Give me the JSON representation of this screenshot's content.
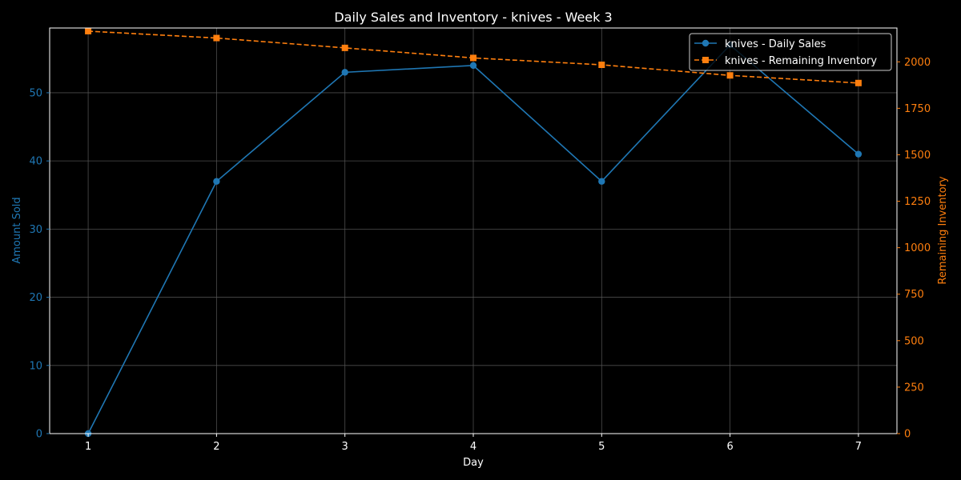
{
  "chart_data": {
    "type": "line",
    "title": "Daily Sales and Inventory - knives - Week 3",
    "xlabel": "Day",
    "ylabel_left": "Amount Sold",
    "ylabel_right": "Remaining Inventory",
    "x": [
      1,
      2,
      3,
      4,
      5,
      6,
      7
    ],
    "xlim": [
      0.7,
      7.3
    ],
    "ylim_left": [
      0,
      59.5
    ],
    "ylim_right": [
      0,
      2182
    ],
    "xticks": [
      1,
      2,
      3,
      4,
      5,
      6,
      7
    ],
    "yticks_left": [
      0,
      10,
      20,
      30,
      40,
      50
    ],
    "yticks_right": [
      0,
      250,
      500,
      750,
      1000,
      1250,
      1500,
      1750,
      2000
    ],
    "grid": true,
    "legend_position": "top-right",
    "series": [
      {
        "name": "knives - Daily Sales",
        "axis": "left",
        "values": [
          0,
          37,
          53,
          54,
          37,
          57,
          41
        ],
        "color": "#1f77b4",
        "marker": "circle",
        "linestyle": "solid"
      },
      {
        "name": "knives - Remaining Inventory",
        "axis": "right",
        "values": [
          2165,
          2128,
          2075,
          2021,
          1984,
          1927,
          1886
        ],
        "color": "#ff7f0e",
        "marker": "square",
        "linestyle": "dashed"
      }
    ],
    "colors": {
      "background": "#000000",
      "foreground": "#ffffff",
      "grid": "#555555",
      "left_axis": "#1f77b4",
      "right_axis": "#ff7f0e"
    }
  }
}
